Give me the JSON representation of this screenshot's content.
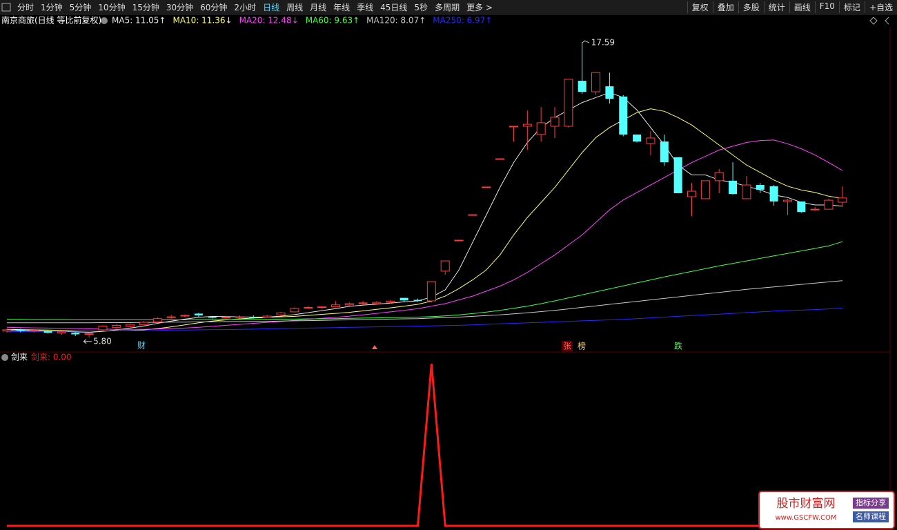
{
  "toolbar": {
    "left": [
      "分时",
      "1分钟",
      "5分钟",
      "10分钟",
      "15分钟",
      "30分钟",
      "60分钟",
      "2小时",
      "日线",
      "周线",
      "月线",
      "年线",
      "季线",
      "45日线",
      "5秒",
      "多周期",
      "更多 >"
    ],
    "active": "日线",
    "right": [
      "复权",
      "叠加",
      "多股",
      "统计",
      "画线",
      "F10",
      "标记",
      "+自选"
    ]
  },
  "title": "南京商旅(日线 等比前复权)",
  "events": [
    "财",
    "张",
    "榜",
    "跌"
  ],
  "watermark": {
    "name": "股市财富网",
    "url": "www.GSCFW.COM",
    "tags": [
      "指标分享",
      "名师课程"
    ]
  },
  "chart_data": [
    {
      "type": "candlestick",
      "up_color": "#ff3c3c",
      "down_color": "#54ffff",
      "ylim": [
        5.27,
        18.2
      ],
      "open": [
        6.05,
        6.1,
        6.05,
        6.05,
        5.98,
        5.98,
        5.92,
        6.1,
        6.2,
        6.25,
        6.3,
        6.42,
        6.6,
        6.65,
        6.75,
        6.62,
        6.58,
        6.6,
        6.62,
        6.6,
        6.7,
        6.82,
        6.98,
        7.0,
        7.02,
        7.1,
        7.15,
        7.15,
        7.2,
        7.38,
        7.3,
        7.26,
        8.45,
        9.69,
        10.71,
        11.82,
        12.95,
        14.25,
        14.25,
        13.92,
        14.25,
        14.25,
        16.07,
        15.63,
        15.85,
        15.44,
        13.92,
        13.56,
        13.64,
        13.01,
        11.43,
        11.35,
        12.07,
        12.07,
        11.35,
        11.9,
        11.85,
        11.24,
        11.24,
        10.93,
        10.93,
        11.21
      ],
      "close": [
        6.1,
        6.05,
        6.08,
        5.98,
        6.02,
        5.92,
        5.95,
        6.25,
        6.28,
        6.32,
        6.4,
        6.55,
        6.62,
        6.68,
        6.68,
        6.58,
        6.6,
        6.62,
        6.58,
        6.65,
        6.78,
        6.95,
        7.0,
        7.02,
        7.1,
        7.15,
        7.18,
        7.2,
        7.25,
        7.28,
        7.25,
        8.03,
        8.86,
        9.69,
        10.71,
        11.82,
        12.95,
        14.25,
        14.33,
        14.39,
        14.61,
        16.13,
        15.63,
        16.4,
        15.35,
        13.92,
        13.64,
        13.78,
        12.81,
        11.57,
        11.65,
        12.07,
        12.4,
        11.54,
        11.9,
        11.71,
        11.24,
        11.29,
        10.82,
        10.93,
        11.29,
        11.38
      ],
      "high": [
        6.15,
        6.15,
        6.12,
        6.1,
        6.05,
        6.0,
        6.0,
        6.28,
        6.32,
        6.35,
        6.45,
        6.6,
        6.7,
        6.72,
        6.78,
        6.65,
        6.65,
        6.68,
        6.68,
        6.7,
        6.82,
        7.0,
        7.05,
        7.05,
        7.25,
        7.2,
        7.25,
        7.25,
        7.3,
        7.38,
        7.35,
        8.03,
        8.86,
        9.69,
        10.71,
        11.82,
        12.95,
        14.25,
        14.88,
        15.02,
        15.02,
        16.13,
        17.59,
        16.4,
        16.4,
        15.5,
        13.92,
        14.05,
        13.92,
        13.01,
        11.98,
        12.07,
        12.54,
        12.81,
        12.26,
        11.98,
        11.9,
        11.35,
        11.24,
        11.02,
        11.35,
        11.85
      ],
      "low": [
        6.0,
        6.0,
        6.0,
        5.95,
        5.9,
        5.85,
        5.8,
        6.05,
        6.15,
        6.2,
        6.28,
        6.4,
        6.55,
        6.6,
        6.62,
        6.55,
        6.55,
        6.55,
        6.55,
        6.58,
        6.65,
        6.8,
        6.95,
        6.95,
        7.0,
        7.05,
        7.1,
        7.1,
        7.15,
        7.2,
        7.22,
        7.2,
        8.31,
        9.69,
        10.71,
        11.82,
        12.95,
        13.64,
        13.3,
        13.64,
        13.78,
        14.2,
        15.55,
        15.5,
        15.16,
        13.85,
        13.6,
        13.09,
        12.67,
        11.57,
        10.66,
        11.35,
        11.57,
        11.51,
        11.35,
        11.57,
        11.07,
        10.69,
        10.78,
        10.88,
        10.93,
        11.02
      ],
      "annotations": [
        {
          "label": "17.59",
          "value": 17.59
        },
        {
          "label": "5.80",
          "value": 5.8
        }
      ],
      "series": [
        {
          "name": "MA5: 11.05↑",
          "color": "#e8e8e8",
          "values": [
            6.08,
            6.07,
            6.07,
            6.05,
            6.04,
            6.02,
            6.0,
            6.04,
            6.1,
            6.17,
            6.25,
            6.36,
            6.45,
            6.53,
            6.6,
            6.64,
            6.63,
            6.62,
            6.61,
            6.61,
            6.65,
            6.71,
            6.79,
            6.87,
            6.95,
            7.04,
            7.09,
            7.13,
            7.17,
            7.22,
            7.26,
            7.41,
            7.7,
            8.5,
            9.6,
            10.7,
            11.8,
            12.8,
            13.6,
            14.2,
            14.6,
            14.9,
            15.2,
            15.4,
            15.6,
            15.4,
            14.9,
            14.2,
            13.5,
            12.7,
            12.3,
            12.3,
            12.1,
            12.0,
            11.85,
            11.7,
            11.5,
            11.4,
            11.2,
            11.1,
            11.1,
            11.05
          ]
        },
        {
          "name": "MA10: 11.36↓",
          "color": "#ffff6a",
          "values": [
            6.12,
            6.11,
            6.1,
            6.09,
            6.08,
            6.06,
            6.05,
            6.05,
            6.06,
            6.08,
            6.1,
            6.15,
            6.22,
            6.3,
            6.38,
            6.45,
            6.5,
            6.54,
            6.57,
            6.6,
            6.62,
            6.64,
            6.68,
            6.72,
            6.76,
            6.8,
            6.86,
            6.92,
            6.98,
            7.05,
            7.12,
            7.25,
            7.45,
            7.75,
            8.1,
            8.5,
            9.1,
            9.9,
            10.6,
            11.2,
            11.8,
            12.5,
            13.2,
            13.8,
            14.2,
            14.5,
            14.8,
            14.95,
            14.85,
            14.6,
            14.3,
            13.9,
            13.5,
            13.1,
            12.7,
            12.4,
            12.1,
            11.85,
            11.7,
            11.6,
            11.45,
            11.36
          ]
        },
        {
          "name": "MA20: 12.48↓",
          "color": "#ff40ff",
          "values": [
            6.2,
            6.19,
            6.18,
            6.17,
            6.16,
            6.15,
            6.14,
            6.13,
            6.12,
            6.12,
            6.12,
            6.13,
            6.15,
            6.17,
            6.2,
            6.24,
            6.28,
            6.32,
            6.36,
            6.4,
            6.44,
            6.48,
            6.52,
            6.56,
            6.6,
            6.65,
            6.7,
            6.76,
            6.82,
            6.88,
            6.95,
            7.05,
            7.15,
            7.3,
            7.45,
            7.65,
            7.85,
            8.1,
            8.4,
            8.75,
            9.1,
            9.5,
            9.9,
            10.4,
            10.9,
            11.3,
            11.6,
            11.9,
            12.2,
            12.5,
            12.8,
            13.05,
            13.3,
            13.45,
            13.6,
            13.68,
            13.7,
            13.55,
            13.35,
            13.1,
            12.8,
            12.48
          ]
        },
        {
          "name": "MA60: 9.63↑",
          "color": "#40ff40",
          "values": [
            6.52,
            6.52,
            6.51,
            6.51,
            6.51,
            6.5,
            6.5,
            6.5,
            6.5,
            6.5,
            6.5,
            6.5,
            6.5,
            6.5,
            6.51,
            6.51,
            6.51,
            6.52,
            6.52,
            6.52,
            6.53,
            6.53,
            6.54,
            6.54,
            6.55,
            6.56,
            6.57,
            6.58,
            6.59,
            6.6,
            6.61,
            6.63,
            6.66,
            6.7,
            6.75,
            6.81,
            6.88,
            6.96,
            7.05,
            7.15,
            7.26,
            7.38,
            7.5,
            7.62,
            7.74,
            7.86,
            7.98,
            8.1,
            8.22,
            8.33,
            8.44,
            8.55,
            8.66,
            8.76,
            8.86,
            8.96,
            9.06,
            9.16,
            9.26,
            9.36,
            9.46,
            9.63
          ]
        },
        {
          "name": "MA120: 8.07↑",
          "color": "#c8c8c8",
          "values": [
            6.38,
            6.38,
            6.38,
            6.38,
            6.38,
            6.38,
            6.38,
            6.39,
            6.39,
            6.39,
            6.4,
            6.4,
            6.41,
            6.41,
            6.42,
            6.42,
            6.43,
            6.43,
            6.44,
            6.44,
            6.45,
            6.46,
            6.47,
            6.48,
            6.49,
            6.5,
            6.51,
            6.52,
            6.53,
            6.54,
            6.55,
            6.57,
            6.59,
            6.61,
            6.64,
            6.67,
            6.7,
            6.74,
            6.78,
            6.83,
            6.88,
            6.94,
            7.0,
            7.06,
            7.12,
            7.18,
            7.24,
            7.3,
            7.36,
            7.42,
            7.48,
            7.54,
            7.6,
            7.66,
            7.72,
            7.77,
            7.82,
            7.87,
            7.92,
            7.97,
            8.02,
            8.07
          ]
        },
        {
          "name": "MA250: 6.97↑",
          "color": "#2828ff",
          "values": [
            6.02,
            6.03,
            6.03,
            6.04,
            6.04,
            6.05,
            6.05,
            6.06,
            6.06,
            6.07,
            6.07,
            6.08,
            6.09,
            6.09,
            6.1,
            6.11,
            6.11,
            6.12,
            6.13,
            6.14,
            6.15,
            6.16,
            6.17,
            6.18,
            6.19,
            6.2,
            6.21,
            6.22,
            6.23,
            6.24,
            6.25,
            6.26,
            6.27,
            6.28,
            6.3,
            6.32,
            6.34,
            6.36,
            6.38,
            6.4,
            6.42,
            6.44,
            6.46,
            6.48,
            6.5,
            6.52,
            6.55,
            6.58,
            6.61,
            6.64,
            6.67,
            6.7,
            6.73,
            6.76,
            6.79,
            6.82,
            6.85,
            6.87,
            6.89,
            6.91,
            6.94,
            6.97
          ]
        }
      ]
    },
    {
      "type": "line",
      "title": "剑来",
      "ylim": [
        0,
        1.03
      ],
      "series": [
        {
          "name": "剑来: 0.00",
          "color": "#ff1a1a",
          "values": [
            0,
            0,
            0,
            0,
            0,
            0,
            0,
            0,
            0,
            0,
            0,
            0,
            0,
            0,
            0,
            0,
            0,
            0,
            0,
            0,
            0,
            0,
            0,
            0,
            0,
            0,
            0,
            0,
            0,
            0,
            0,
            1,
            0,
            0,
            0,
            0,
            0,
            0,
            0,
            0,
            0,
            0,
            0,
            0,
            0,
            0,
            0,
            0,
            0,
            0,
            0,
            0,
            0,
            0,
            0,
            0,
            0,
            0,
            0,
            0,
            0,
            0
          ]
        }
      ]
    }
  ]
}
